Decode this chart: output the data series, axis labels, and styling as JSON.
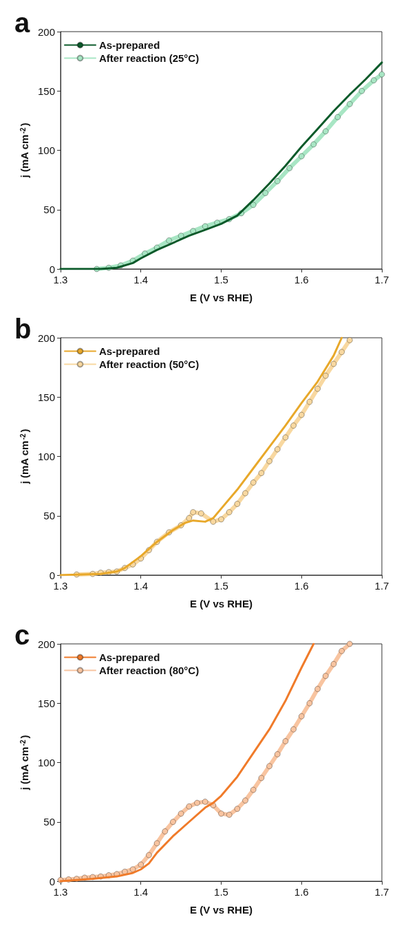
{
  "chart_data": [
    {
      "type": "line",
      "title": "a",
      "xlabel": "E (V vs RHE)",
      "ylabel": "j (mA cm$^{-2}$)",
      "xlim": [
        1.3,
        1.7
      ],
      "xticks": [
        1.3,
        1.4,
        1.5,
        1.6,
        1.7
      ],
      "ylim": [
        0,
        200
      ],
      "yticks": [
        0,
        50,
        100,
        150,
        200
      ],
      "grid": false,
      "legend": "top left",
      "series": [
        {
          "name": "As-prepared",
          "color": "#0b5a2a",
          "marker": "none",
          "x": [
            1.3,
            1.35,
            1.37,
            1.39,
            1.4,
            1.42,
            1.44,
            1.46,
            1.48,
            1.5,
            1.52,
            1.54,
            1.56,
            1.58,
            1.6,
            1.62,
            1.64,
            1.66,
            1.68,
            1.7
          ],
          "values": [
            0,
            0,
            1,
            5,
            9,
            16,
            22,
            28,
            33,
            38,
            45,
            58,
            72,
            87,
            103,
            118,
            133,
            147,
            160,
            174
          ]
        },
        {
          "name": "After reaction (25°C)",
          "color": "#a8e6c4",
          "marker": "circle",
          "x": [
            1.345,
            1.36,
            1.375,
            1.39,
            1.405,
            1.42,
            1.435,
            1.45,
            1.465,
            1.48,
            1.495,
            1.51,
            1.525,
            1.54,
            1.555,
            1.57,
            1.585,
            1.6,
            1.615,
            1.63,
            1.645,
            1.66,
            1.675,
            1.69,
            1.7
          ],
          "values": [
            0,
            1,
            3,
            7,
            13,
            18,
            24,
            28,
            32,
            36,
            39,
            42,
            47,
            54,
            64,
            74,
            85,
            95,
            105,
            116,
            128,
            139,
            150,
            159,
            164
          ]
        }
      ]
    },
    {
      "type": "line",
      "title": "b",
      "xlabel": "E (V vs RHE)",
      "ylabel": "j (mA cm$^{-2}$)",
      "xlim": [
        1.3,
        1.7
      ],
      "xticks": [
        1.3,
        1.4,
        1.5,
        1.6,
        1.7
      ],
      "ylim": [
        0,
        200
      ],
      "yticks": [
        0,
        50,
        100,
        150,
        200
      ],
      "grid": false,
      "legend": "top left",
      "series": [
        {
          "name": "As-prepared",
          "color": "#e8a82a",
          "marker": "none",
          "x": [
            1.3,
            1.35,
            1.37,
            1.38,
            1.4,
            1.42,
            1.44,
            1.455,
            1.465,
            1.48,
            1.49,
            1.5,
            1.52,
            1.54,
            1.56,
            1.58,
            1.6,
            1.62,
            1.64,
            1.65
          ],
          "values": [
            0,
            1,
            3,
            6,
            16,
            28,
            38,
            44,
            46,
            45,
            48,
            56,
            72,
            90,
            108,
            126,
            145,
            163,
            185,
            200
          ]
        },
        {
          "name": "After reaction (50°C)",
          "color": "#f8d8a0",
          "marker": "circle",
          "x": [
            1.32,
            1.34,
            1.35,
            1.36,
            1.37,
            1.38,
            1.39,
            1.4,
            1.41,
            1.42,
            1.435,
            1.45,
            1.46,
            1.465,
            1.475,
            1.49,
            1.5,
            1.51,
            1.52,
            1.53,
            1.54,
            1.55,
            1.56,
            1.57,
            1.58,
            1.59,
            1.6,
            1.61,
            1.62,
            1.63,
            1.64,
            1.65,
            1.66
          ],
          "values": [
            0.5,
            1,
            2,
            2.5,
            3,
            6,
            9,
            14,
            21,
            28,
            36,
            42,
            48,
            53,
            52,
            45,
            47,
            53,
            60,
            69,
            78,
            86,
            96,
            106,
            116,
            126,
            135,
            146,
            157,
            168,
            178,
            188,
            198
          ]
        }
      ]
    },
    {
      "type": "line",
      "title": "c",
      "xlabel": "E (V vs RHE)",
      "ylabel": "j (mA cm$^{-2}$)",
      "xlim": [
        1.3,
        1.7
      ],
      "xticks": [
        1.3,
        1.4,
        1.5,
        1.6,
        1.7
      ],
      "ylim": [
        0,
        200
      ],
      "yticks": [
        0,
        50,
        100,
        150,
        200
      ],
      "grid": false,
      "legend": "top left",
      "series": [
        {
          "name": "As-prepared",
          "color": "#f07b2a",
          "marker": "none",
          "x": [
            1.3,
            1.34,
            1.37,
            1.39,
            1.4,
            1.41,
            1.42,
            1.44,
            1.46,
            1.48,
            1.49,
            1.5,
            1.52,
            1.54,
            1.56,
            1.58,
            1.6,
            1.615
          ],
          "values": [
            0,
            2,
            4,
            7,
            10,
            15,
            24,
            38,
            50,
            62,
            66,
            72,
            88,
            108,
            128,
            152,
            180,
            200
          ]
        },
        {
          "name": "After reaction (80°C)",
          "color": "#f8c4a0",
          "marker": "circle",
          "x": [
            1.3,
            1.31,
            1.32,
            1.33,
            1.34,
            1.35,
            1.36,
            1.37,
            1.38,
            1.39,
            1.4,
            1.41,
            1.42,
            1.43,
            1.44,
            1.45,
            1.46,
            1.47,
            1.48,
            1.49,
            1.5,
            1.51,
            1.52,
            1.53,
            1.54,
            1.55,
            1.56,
            1.57,
            1.58,
            1.59,
            1.6,
            1.61,
            1.62,
            1.63,
            1.64,
            1.65,
            1.66
          ],
          "values": [
            1,
            1.5,
            2,
            3,
            3.5,
            4,
            5,
            6,
            8,
            10,
            14,
            22,
            32,
            42,
            50,
            57,
            63,
            66,
            67,
            64,
            57,
            56,
            61,
            68,
            77,
            87,
            97,
            107,
            118,
            128,
            139,
            150,
            162,
            173,
            183,
            194,
            200
          ]
        }
      ]
    }
  ]
}
